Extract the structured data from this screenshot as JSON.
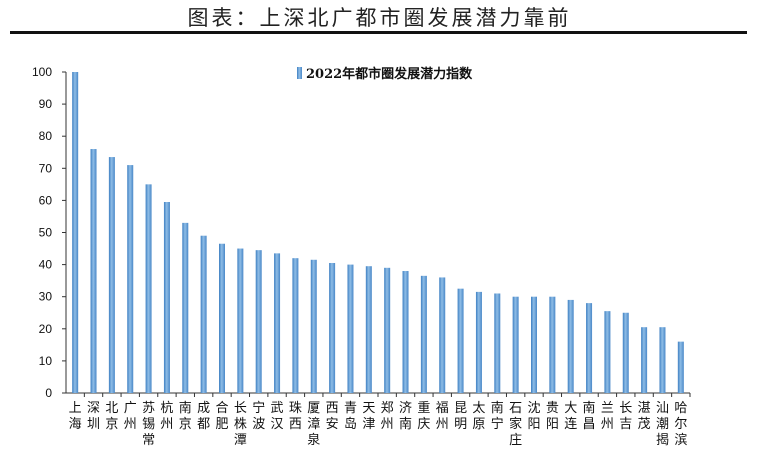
{
  "page_title": "图表：上深北广都市圈发展潜力靠前",
  "chart_data": {
    "type": "bar",
    "title": "",
    "xlabel": "",
    "ylabel": "",
    "ylim": [
      0,
      100
    ],
    "yticks": [
      0,
      10,
      20,
      30,
      40,
      50,
      60,
      70,
      80,
      90,
      100
    ],
    "grid": false,
    "legend_position": "top-center",
    "categories": [
      "上海",
      "深圳",
      "北京",
      "广州",
      "苏锡常",
      "杭州",
      "南京",
      "成都",
      "合肥",
      "长株潭",
      "宁波",
      "武汉",
      "珠西",
      "厦漳泉",
      "西安",
      "青岛",
      "天津",
      "郑州",
      "济南",
      "重庆",
      "福州",
      "昆明",
      "太原",
      "南宁",
      "石家庄",
      "沈阳",
      "贵阳",
      "大连",
      "南昌",
      "兰州",
      "长吉",
      "湛茂",
      "汕潮揭",
      "哈尔滨"
    ],
    "series": [
      {
        "name": "2022年都市圈发展潜力指数",
        "color": "#5b9bd5",
        "values": [
          100,
          76,
          73.5,
          71,
          65,
          59.5,
          53,
          49,
          46.5,
          45,
          44.5,
          43.5,
          42,
          41.5,
          40.5,
          40,
          39.5,
          39,
          38,
          36.5,
          36,
          32.5,
          31.5,
          31,
          30,
          30,
          30,
          29,
          28,
          25.5,
          25,
          20.5,
          20.5,
          16
        ]
      }
    ]
  }
}
